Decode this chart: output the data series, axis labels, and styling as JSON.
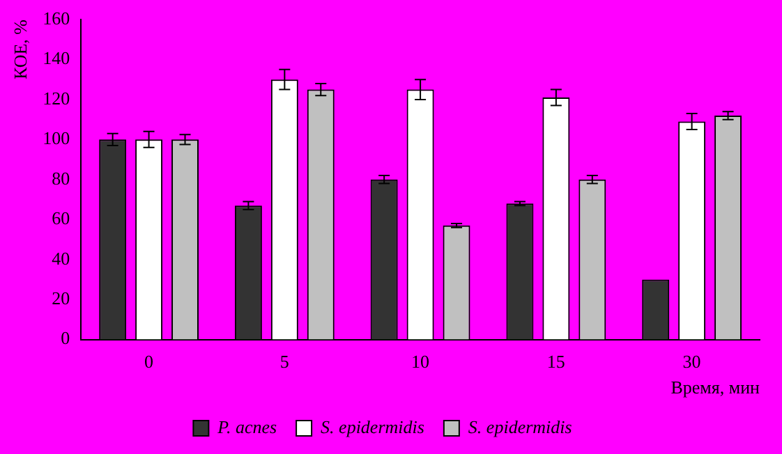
{
  "chart_data": {
    "type": "bar",
    "ylabel": "КОЕ, %",
    "xlabel": "Время, мин",
    "categories": [
      "0",
      "5",
      "10",
      "15",
      "30"
    ],
    "series": [
      {
        "name": "P. acnes",
        "color": "#333333",
        "values": [
          100,
          67,
          80,
          68,
          30
        ],
        "errors": [
          3,
          2,
          2,
          1,
          null
        ]
      },
      {
        "name": "S. epidermidis",
        "color": "#ffffff",
        "values": [
          100,
          130,
          125,
          121,
          109
        ],
        "errors": [
          4,
          5,
          5,
          4,
          4
        ]
      },
      {
        "name": "S. epidermidis",
        "color": "#c0c0c0",
        "values": [
          100,
          125,
          57,
          80,
          112
        ],
        "errors": [
          2.5,
          3,
          1,
          2,
          2
        ]
      }
    ],
    "ylim": [
      0,
      160
    ],
    "yticks": [
      0,
      20,
      40,
      60,
      80,
      100,
      120,
      140,
      160
    ],
    "grid": false,
    "legend": "bottom"
  }
}
